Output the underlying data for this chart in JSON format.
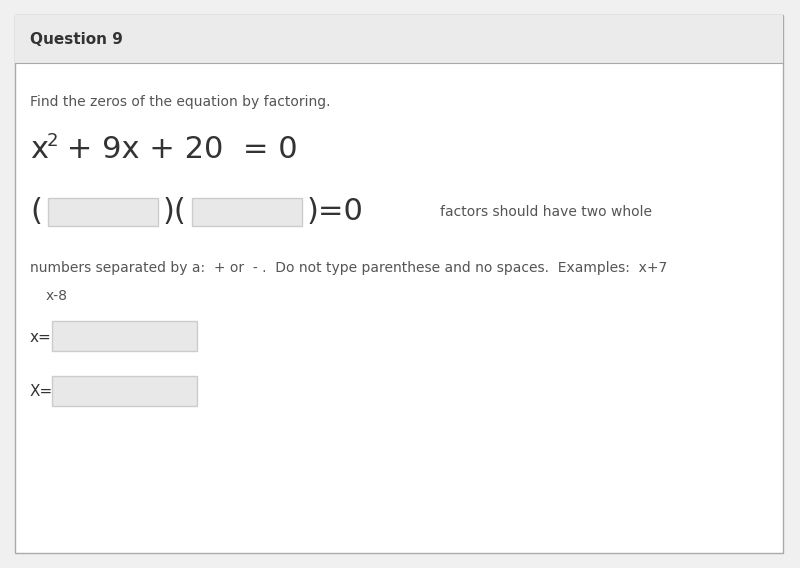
{
  "bg_color": "#f0f0f0",
  "white_bg": "#ffffff",
  "header_bg": "#ebebeb",
  "header_text": "Question 9",
  "header_fontsize": 11,
  "instruction_text": "Find the zeros of the equation by factoring.",
  "instruction_fontsize": 10,
  "equation_fontsize": 22,
  "eq_sup_fontsize": 13,
  "input_box_color": "#e8e8e8",
  "input_box_border": "#cccccc",
  "side_note": "factors should have two whole",
  "bottom_note1": "numbers separated by a:  + or  - .  Do not type parenthese and no spaces.  Examples:  x+7",
  "bottom_note2": "x-8",
  "x_lower_label": "x=",
  "x_upper_label": "X=",
  "note_fontsize": 10,
  "outer_border": "#aaaaaa",
  "text_dark": "#333333",
  "text_mid": "#555555"
}
